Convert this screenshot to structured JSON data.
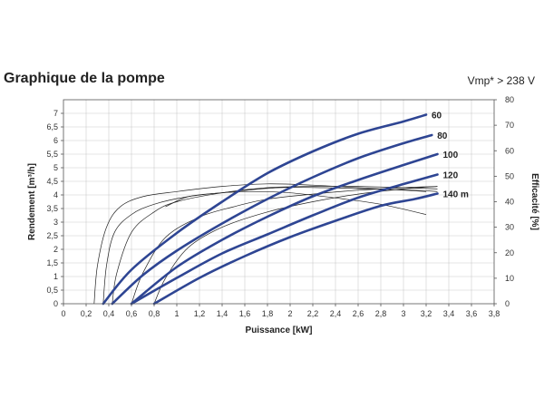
{
  "title": "Graphique de la pompe",
  "subtitle": "Vmp* > 238 V",
  "chart_data": {
    "type": "line",
    "xlabel": "Puissance [kW]",
    "ylabel": "Rendement [m³/h]",
    "y2label": "Efficacité [%]",
    "xlim": [
      0,
      3.8
    ],
    "ylim": [
      0,
      7.5
    ],
    "y2lim": [
      0,
      80
    ],
    "xticks": [
      "0",
      "0,2",
      "0,4",
      "0,6",
      "0,8",
      "1",
      "1,2",
      "1,4",
      "1,6",
      "1,8",
      "2",
      "2,2",
      "2,4",
      "2,6",
      "2,8",
      "3",
      "3,2",
      "3,4",
      "3,6",
      "3,8"
    ],
    "yticks": [
      "0",
      "0,5",
      "1",
      "1,5",
      "2",
      "2,5",
      "3",
      "3,5",
      "4",
      "4,5",
      "5",
      "5,5",
      "6",
      "6,5",
      "7"
    ],
    "y2ticks": [
      "0",
      "10",
      "20",
      "30",
      "40",
      "50",
      "60",
      "70",
      "80"
    ],
    "grid": true,
    "colors": {
      "flow": "#2e4593",
      "efficiency": "#222222",
      "grid": "#cccccc"
    },
    "series": [
      {
        "name": "60",
        "kind": "flow",
        "x": [
          0.35,
          0.6,
          1.0,
          1.4,
          1.8,
          2.2,
          2.6,
          3.0,
          3.2
        ],
        "y": [
          0,
          1.25,
          2.6,
          3.75,
          4.8,
          5.6,
          6.25,
          6.7,
          6.95
        ]
      },
      {
        "name": "80",
        "kind": "flow",
        "x": [
          0.43,
          0.7,
          1.0,
          1.4,
          1.8,
          2.2,
          2.6,
          3.0,
          3.25
        ],
        "y": [
          0,
          1.05,
          1.95,
          2.95,
          3.85,
          4.65,
          5.35,
          5.9,
          6.2
        ]
      },
      {
        "name": "100",
        "kind": "flow",
        "x": [
          0.6,
          1.0,
          1.4,
          1.8,
          2.2,
          2.6,
          3.0,
          3.3
        ],
        "y": [
          0,
          1.35,
          2.35,
          3.2,
          3.95,
          4.55,
          5.1,
          5.5
        ]
      },
      {
        "name": "120",
        "kind": "flow",
        "x": [
          0.6,
          1.0,
          1.4,
          1.8,
          2.2,
          2.6,
          3.0,
          3.3
        ],
        "y": [
          0,
          0.95,
          1.85,
          2.55,
          3.25,
          3.9,
          4.4,
          4.75
        ]
      },
      {
        "name": "140 m",
        "kind": "flow",
        "x": [
          0.8,
          1.2,
          1.6,
          2.0,
          2.4,
          2.8,
          3.1,
          3.3
        ],
        "y": [
          0,
          0.95,
          1.75,
          2.45,
          3.05,
          3.6,
          3.85,
          4.05
        ]
      },
      {
        "kind": "efficiency",
        "x": [
          0.27,
          0.3,
          0.38,
          0.5,
          0.7,
          1.0,
          1.4,
          1.8,
          2.2,
          2.6,
          3.0,
          3.2
        ],
        "y": [
          0,
          15,
          30,
          38,
          42,
          44,
          46,
          47,
          46.5,
          45.5,
          44.5,
          44
        ]
      },
      {
        "kind": "efficiency",
        "x": [
          0.35,
          0.38,
          0.45,
          0.6,
          0.8,
          1.1,
          1.5,
          1.9,
          2.3,
          2.7,
          3.1,
          3.3
        ],
        "y": [
          0,
          15,
          28,
          35,
          39,
          42,
          44,
          45.5,
          45.5,
          45,
          44.5,
          44
        ]
      },
      {
        "kind": "efficiency",
        "x": [
          0.43,
          0.47,
          0.6,
          0.8,
          1.0,
          1.4,
          1.8,
          2.2,
          2.6,
          3.0,
          3.3
        ],
        "y": [
          0,
          12,
          28,
          36,
          40,
          43.5,
          45.5,
          46,
          46,
          45.5,
          45
        ]
      },
      {
        "kind": "efficiency",
        "x": [
          0.6,
          0.7,
          0.9,
          1.2,
          1.5,
          1.8,
          2.2,
          2.6,
          3.0,
          3.3
        ],
        "y": [
          0,
          12,
          26,
          34,
          38,
          41,
          43,
          44.5,
          45.5,
          46
        ]
      },
      {
        "kind": "efficiency",
        "x": [
          0.8,
          0.9,
          1.1,
          1.4,
          1.8,
          2.2,
          2.6,
          3.0,
          3.3
        ],
        "y": [
          0,
          10,
          22,
          30,
          36,
          40,
          43,
          45,
          46
        ]
      },
      {
        "kind": "efficiency",
        "x": [
          0.9,
          1.1,
          1.4,
          1.7,
          2.0,
          2.4,
          2.8,
          3.2
        ],
        "y": [
          38,
          42,
          43.5,
          44,
          43.5,
          41.5,
          39,
          35
        ]
      }
    ]
  }
}
